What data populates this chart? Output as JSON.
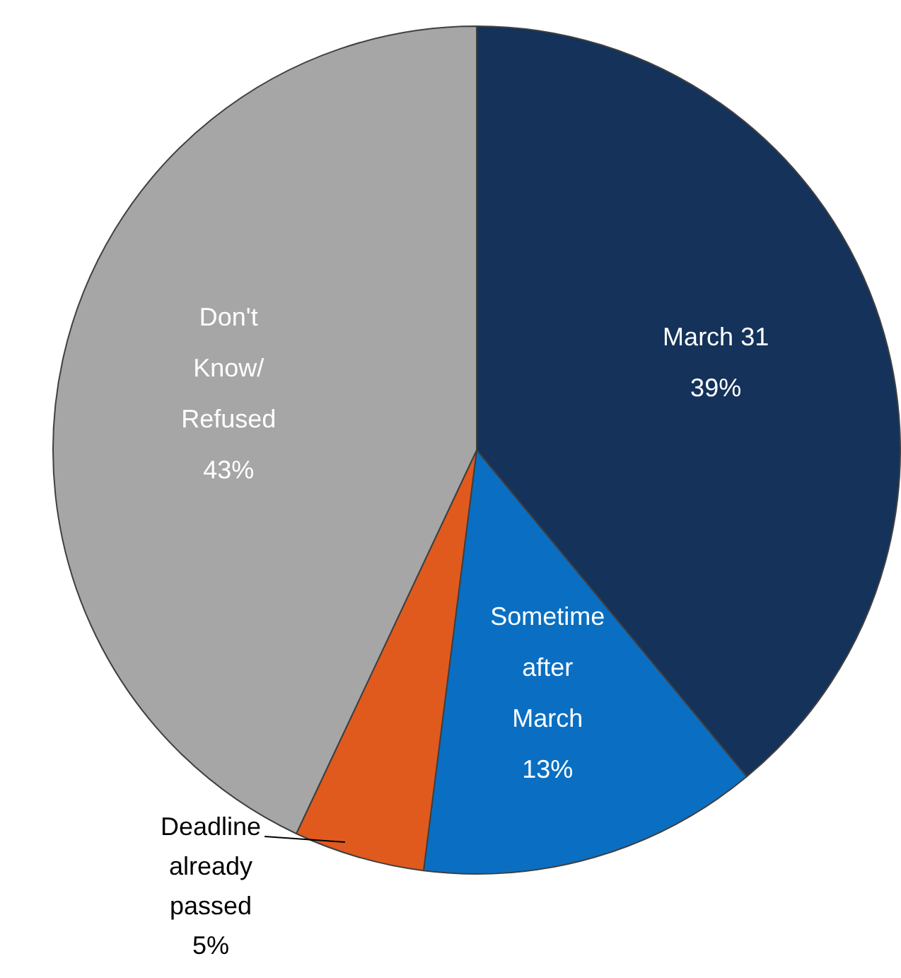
{
  "chart_data": {
    "type": "pie",
    "categories": [
      "March 31",
      "Sometime after March",
      "Deadline already passed",
      "Don't Know/ Refused"
    ],
    "values": [
      39,
      13,
      5,
      43
    ],
    "colors": [
      "#14325a",
      "#0a6fc2",
      "#e05a1e",
      "#a6a6a6"
    ],
    "value_labels": [
      "39%",
      "13%",
      "5%",
      "43%"
    ],
    "legend": false
  }
}
